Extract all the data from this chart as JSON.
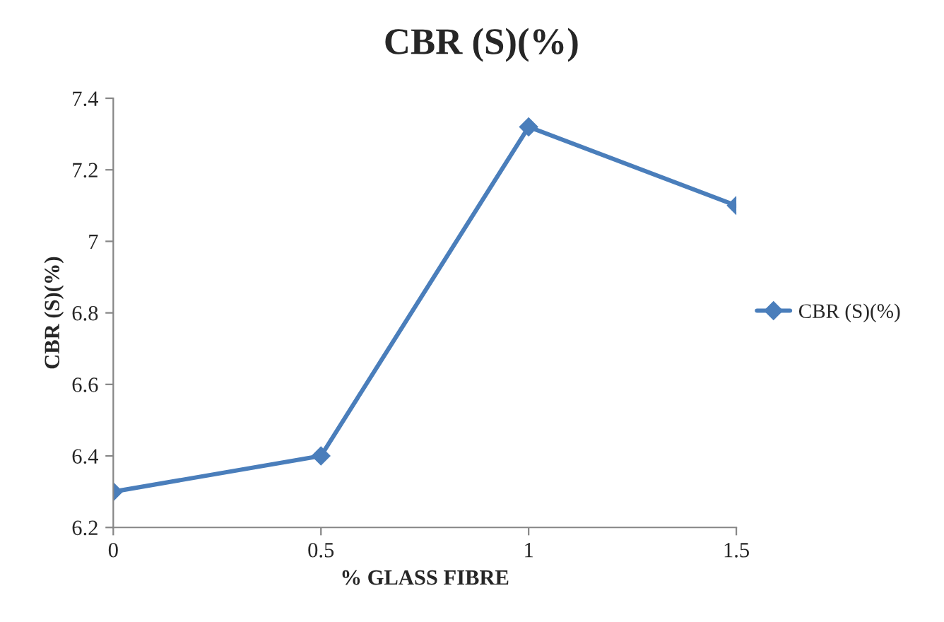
{
  "chart_data": {
    "type": "line",
    "title": "CBR (S)(%)",
    "xlabel": "% GLASS FIBRE",
    "ylabel": "CBR (S)(%)",
    "categories": [
      "0",
      "0.5",
      "1",
      "1.5"
    ],
    "series": [
      {
        "name": "CBR (S)(%)",
        "color": "#4a7ebb",
        "values": [
          6.3,
          6.4,
          7.32,
          7.1
        ]
      }
    ],
    "ylim": [
      6.2,
      7.4
    ],
    "yticks": [
      6.2,
      6.4,
      6.6,
      6.8,
      {
        "value": 7,
        "label": "7"
      },
      7.2,
      7.4
    ],
    "marker": "diamond",
    "line_style": "solid",
    "legend": "right",
    "grid": false
  }
}
